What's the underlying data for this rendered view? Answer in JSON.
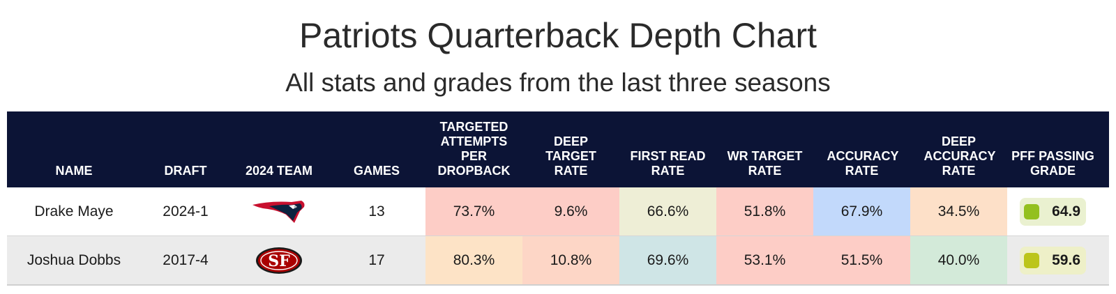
{
  "header": {
    "title": "Patriots Quarterback Depth Chart",
    "subtitle": "All stats and grades from the last three seasons"
  },
  "columns": {
    "name": "NAME",
    "draft": "DRAFT",
    "team": "2024 TEAM",
    "games": "GAMES",
    "targeted_attempts": "TARGETED ATTEMPTS PER DROPBACK",
    "deep_target": "DEEP TARGET RATE",
    "first_read": "FIRST READ RATE",
    "wr_target": "WR TARGET RATE",
    "accuracy": "ACCURACY RATE",
    "deep_accuracy": "DEEP ACCURACY RATE",
    "pff": "PFF PASSING GRADE"
  },
  "rows": [
    {
      "name": "Drake Maye",
      "draft": "2024-1",
      "team_logo": "patriots-logo-icon",
      "games": "13",
      "stats": [
        {
          "value": "73.7%",
          "color": "#fdcdc6"
        },
        {
          "value": "9.6%",
          "color": "#fdcdc6"
        },
        {
          "value": "66.6%",
          "color": "#eeeed6"
        },
        {
          "value": "51.8%",
          "color": "#fdcdc6"
        },
        {
          "value": "67.9%",
          "color": "#c2d9fb"
        },
        {
          "value": "34.5%",
          "color": "#fde0c8"
        }
      ],
      "pff": {
        "value": "64.9",
        "box_color": "#eaf1d0",
        "dot_color": "#93c01f"
      }
    },
    {
      "name": "Joshua Dobbs",
      "draft": "2017-4",
      "team_logo": "49ers-logo-icon",
      "games": "17",
      "stats": [
        {
          "value": "80.3%",
          "color": "#fde3c6"
        },
        {
          "value": "10.8%",
          "color": "#fdd6c6"
        },
        {
          "value": "69.6%",
          "color": "#cfe5e6"
        },
        {
          "value": "53.1%",
          "color": "#fdcdc6"
        },
        {
          "value": "51.5%",
          "color": "#fdcdc6"
        },
        {
          "value": "40.0%",
          "color": "#d3ead9"
        }
      ],
      "pff": {
        "value": "59.6",
        "box_color": "#eef0c8",
        "dot_color": "#bcc51b"
      }
    }
  ]
}
